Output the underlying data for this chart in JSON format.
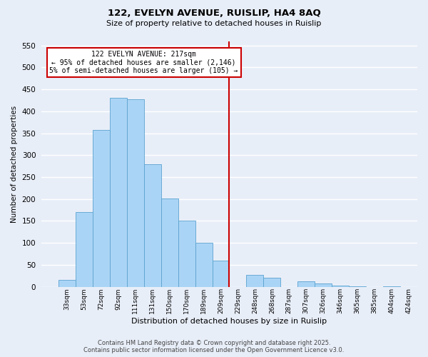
{
  "title": "122, EVELYN AVENUE, RUISLIP, HA4 8AQ",
  "subtitle": "Size of property relative to detached houses in Ruislip",
  "xlabel": "Distribution of detached houses by size in Ruislip",
  "ylabel": "Number of detached properties",
  "bar_labels": [
    "33sqm",
    "53sqm",
    "72sqm",
    "92sqm",
    "111sqm",
    "131sqm",
    "150sqm",
    "170sqm",
    "189sqm",
    "209sqm",
    "229sqm",
    "248sqm",
    "268sqm",
    "287sqm",
    "307sqm",
    "326sqm",
    "346sqm",
    "365sqm",
    "385sqm",
    "404sqm",
    "424sqm"
  ],
  "bar_values": [
    15,
    170,
    357,
    430,
    428,
    280,
    202,
    150,
    100,
    60,
    0,
    27,
    21,
    0,
    13,
    8,
    2,
    1,
    0,
    1,
    0
  ],
  "bar_color": "#aad4f5",
  "bar_edge_color": "#5ba3d0",
  "vline_x": 9.5,
  "vline_color": "#cc0000",
  "annotation_text": "122 EVELYN AVENUE: 217sqm\n← 95% of detached houses are smaller (2,146)\n5% of semi-detached houses are larger (105) →",
  "annotation_box_color": "#ffffff",
  "annotation_box_edge": "#cc0000",
  "ylim": [
    0,
    560
  ],
  "yticks": [
    0,
    50,
    100,
    150,
    200,
    250,
    300,
    350,
    400,
    450,
    500,
    550
  ],
  "background_color": "#e8eef8",
  "grid_color": "#ffffff",
  "footer_line1": "Contains HM Land Registry data © Crown copyright and database right 2025.",
  "footer_line2": "Contains public sector information licensed under the Open Government Licence v3.0."
}
